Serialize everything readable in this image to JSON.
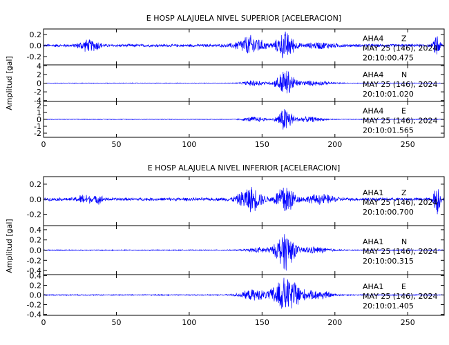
{
  "chart_data": [
    {
      "type": "line",
      "title": "E HOSP ALAJUELA NIVEL SUPERIOR [ACELERACION]",
      "ylabel": "Amplitud [gal]",
      "xlabel": "",
      "xlim": [
        0,
        275
      ],
      "x_ticks": [
        0,
        50,
        100,
        150,
        200,
        250
      ],
      "color": "#0000ff",
      "traces": [
        {
          "ylim": [
            -0.35,
            0.3
          ],
          "y_ticks": [
            -0.2,
            0.0,
            0.2
          ],
          "y_tick_labels": [
            "-0.2",
            "0.0",
            "0.2"
          ],
          "station": "AHA4",
          "component": "Z",
          "date": "MAY 25 (146), 2024",
          "time": "20:10:00.475",
          "noise": 0.028,
          "bursts": [
            [
              30,
              6,
              0.1
            ],
            [
              37,
              3,
              0.05
            ],
            [
              142,
              9,
              0.18
            ],
            [
              166,
              6,
              0.26
            ],
            [
              190,
              10,
              0.05
            ],
            [
              270,
              2,
              0.24
            ]
          ]
        },
        {
          "ylim": [
            -4.2,
            4.2
          ],
          "y_ticks": [
            -4,
            -2,
            0,
            2,
            4
          ],
          "y_tick_labels": [
            "-4",
            "-2",
            "0",
            "2",
            "4"
          ],
          "station": "AHA4",
          "component": "N",
          "date": "MAY 25 (146), 2024",
          "time": "20:10:01.020",
          "noise": 0.08,
          "bursts": [
            [
              145,
              8,
              0.7
            ],
            [
              166,
              6,
              3.5
            ],
            [
              185,
              12,
              0.6
            ]
          ]
        },
        {
          "ylim": [
            -2.6,
            2.6
          ],
          "y_ticks": [
            -2,
            -1,
            0,
            1,
            2
          ],
          "y_tick_labels": [
            "-2",
            "-1",
            "0",
            "1",
            "2"
          ],
          "station": "AHA4",
          "component": "E",
          "date": "MAY 25 (146), 2024",
          "time": "20:10:01.565",
          "noise": 0.05,
          "bursts": [
            [
              145,
              8,
              0.4
            ],
            [
              166,
              5,
              2.0
            ],
            [
              182,
              10,
              0.4
            ]
          ]
        }
      ]
    },
    {
      "type": "line",
      "title": "E HOSP ALAJUELA NIVEL INFERIOR [ACELERACION]",
      "ylabel": "Amplitud [gal]",
      "xlabel": "",
      "xlim": [
        0,
        275
      ],
      "x_ticks": [
        0,
        50,
        100,
        150,
        200,
        250
      ],
      "color": "#0000ff",
      "traces": [
        {
          "ylim": [
            -0.35,
            0.3
          ],
          "y_ticks": [
            -0.2,
            0.0,
            0.2
          ],
          "y_tick_labels": [
            "-0.2",
            "0.0",
            "0.2"
          ],
          "station": "AHA1",
          "component": "Z",
          "date": "MAY 25 (146), 2024",
          "time": "20:10:00.700",
          "noise": 0.022,
          "bursts": [
            [
              28,
              5,
              0.06
            ],
            [
              38,
              3,
              0.05
            ],
            [
              142,
              8,
              0.17
            ],
            [
              166,
              6,
              0.24
            ],
            [
              190,
              10,
              0.06
            ],
            [
              270,
              2,
              0.25
            ]
          ]
        },
        {
          "ylim": [
            -0.48,
            0.48
          ],
          "y_ticks": [
            -0.4,
            -0.2,
            0.0,
            0.2,
            0.4
          ],
          "y_tick_labels": [
            "-0.4",
            "-0.2",
            "0.0",
            "0.2",
            "0.4"
          ],
          "station": "AHA1",
          "component": "N",
          "date": "MAY 25 (146), 2024",
          "time": "20:10:00.315",
          "noise": 0.01,
          "bursts": [
            [
              150,
              10,
              0.06
            ],
            [
              166,
              6,
              0.42
            ],
            [
              185,
              12,
              0.07
            ]
          ]
        },
        {
          "ylim": [
            -0.42,
            0.42
          ],
          "y_ticks": [
            -0.4,
            -0.2,
            0.0,
            0.2,
            0.4
          ],
          "y_tick_labels": [
            "-0.4",
            "-0.2",
            "0.0",
            "0.2",
            "0.4"
          ],
          "station": "AHA1",
          "component": "E",
          "date": "MAY 25 (146), 2024",
          "time": "20:10:01.405",
          "noise": 0.012,
          "bursts": [
            [
              145,
              10,
              0.12
            ],
            [
              163,
              6,
              0.34
            ],
            [
              172,
              6,
              0.3
            ],
            [
              188,
              10,
              0.1
            ]
          ]
        }
      ]
    }
  ]
}
